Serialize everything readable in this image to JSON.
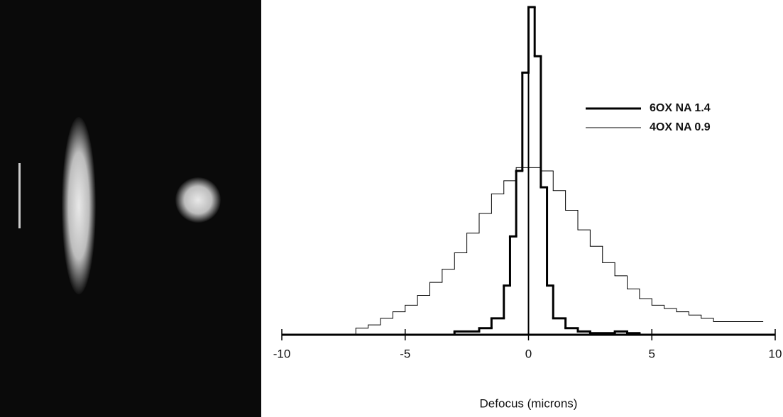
{
  "chart_data": {
    "type": "step",
    "xlabel": "Defocus (microns)",
    "xlim": [
      -10,
      10
    ],
    "xticks": [
      -10,
      -5,
      0,
      5,
      10
    ],
    "ylim": [
      0,
      100
    ],
    "legend": "upper right",
    "series": [
      {
        "name": "6OX NA 1.4",
        "color": "#000000",
        "width": 3,
        "x": [
          -4.5,
          -3,
          -2,
          -1.5,
          -1,
          -0.75,
          -0.5,
          -0.25,
          0,
          0.25,
          0.5,
          0.75,
          1,
          1.5,
          2,
          2.5,
          3.5,
          4,
          4.5
        ],
        "values": [
          0,
          1,
          2,
          5,
          15,
          30,
          50,
          80,
          100,
          85,
          45,
          15,
          5,
          2,
          1,
          0.5,
          1,
          0.5,
          0
        ]
      },
      {
        "name": "4OX NA 0.9",
        "color": "#000000",
        "width": 1,
        "x": [
          -7.5,
          -7,
          -6.5,
          -6,
          -5.5,
          -5,
          -4.5,
          -4,
          -3.5,
          -3,
          -2.5,
          -2,
          -1.5,
          -1,
          -0.5,
          0,
          0.5,
          1,
          1.5,
          2,
          2.5,
          3,
          3.5,
          4,
          4.5,
          5,
          5.5,
          6,
          6.5,
          7,
          7.5,
          8,
          8.5,
          9
        ],
        "values": [
          0,
          2,
          3,
          5,
          7,
          9,
          12,
          16,
          20,
          25,
          31,
          37,
          43,
          47,
          51,
          51,
          50,
          44,
          38,
          32,
          27,
          22,
          18,
          14,
          11,
          9,
          8,
          7,
          6,
          5,
          4,
          4,
          4,
          4
        ]
      }
    ]
  }
}
